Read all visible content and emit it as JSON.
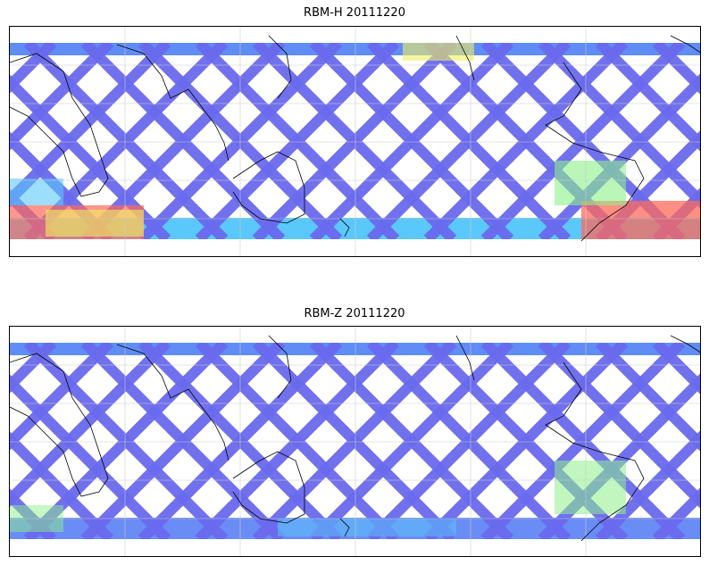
{
  "panels": [
    {
      "title": "RBM-H 20111220",
      "variant": "H"
    },
    {
      "title": "RBM-Z 20111220",
      "variant": "Z"
    }
  ],
  "colors": {
    "swath_low": "#6a6aee",
    "swath_mid": "#5ac8fa",
    "swath_high_green": "#8ef08a",
    "swath_yellow": "#f0f060",
    "swath_red": "#ff6a5a",
    "coastline": "#000000",
    "grid": "#cccccc"
  }
}
